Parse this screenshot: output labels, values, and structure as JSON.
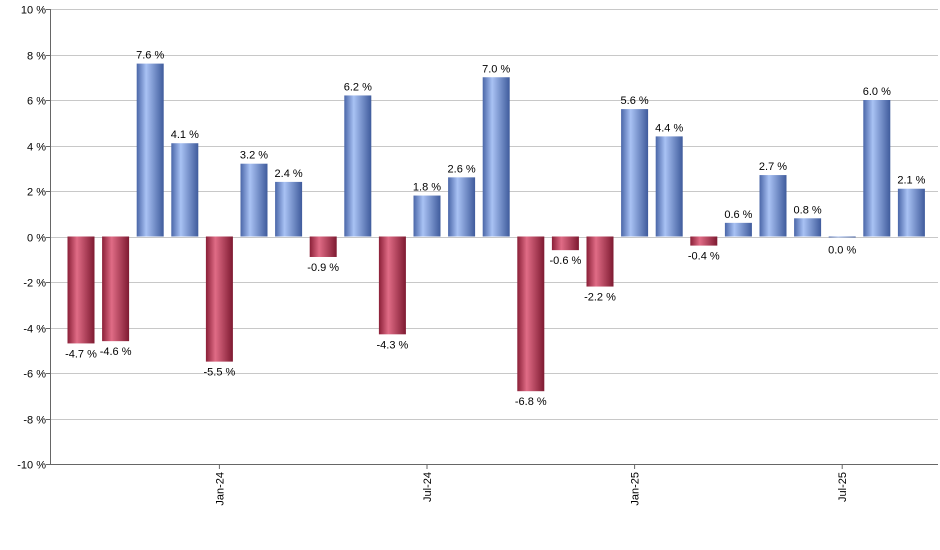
{
  "chart_data": {
    "type": "bar",
    "title": "",
    "xlabel": "",
    "ylabel": "",
    "ylim": [
      -10,
      10
    ],
    "y_ticks": [
      10,
      8,
      6,
      4,
      2,
      0,
      -2,
      -4,
      -6,
      -8,
      -10
    ],
    "y_tick_labels": [
      "10 %",
      "8 %",
      "6 %",
      "4 %",
      "2 %",
      "0 %",
      "-2 %",
      "-4 %",
      "-6 %",
      "-8 %",
      "-10 %"
    ],
    "x_tick_labels": [
      {
        "label": "Jan-24",
        "index": 4
      },
      {
        "label": "Jul-24",
        "index": 10
      },
      {
        "label": "Jan-25",
        "index": 16
      },
      {
        "label": "Jul-25",
        "index": 22
      }
    ],
    "grid": true,
    "positive_color": "#7f9fdc",
    "negative_color": "#c23a59",
    "values": [
      -4.7,
      -4.6,
      7.6,
      4.1,
      -5.5,
      3.2,
      2.4,
      -0.9,
      6.2,
      -4.3,
      1.8,
      2.6,
      7.0,
      -6.8,
      -0.6,
      -2.2,
      5.6,
      4.4,
      -0.4,
      0.6,
      2.7,
      0.8,
      0.0,
      6.0,
      2.1
    ],
    "labels": [
      "-4.7 %",
      "-4.6 %",
      "7.6 %",
      "4.1 %",
      "-5.5 %",
      "3.2 %",
      "2.4 %",
      "-0.9 %",
      "6.2 %",
      "-4.3 %",
      "1.8 %",
      "2.6 %",
      "7.0 %",
      "-6.8 %",
      "-0.6 %",
      "-2.2 %",
      "5.6 %",
      "4.4 %",
      "-0.4 %",
      "0.6 %",
      "2.7 %",
      "0.8 %",
      "0.0 %",
      "6.0 %",
      "2.1 %"
    ]
  }
}
